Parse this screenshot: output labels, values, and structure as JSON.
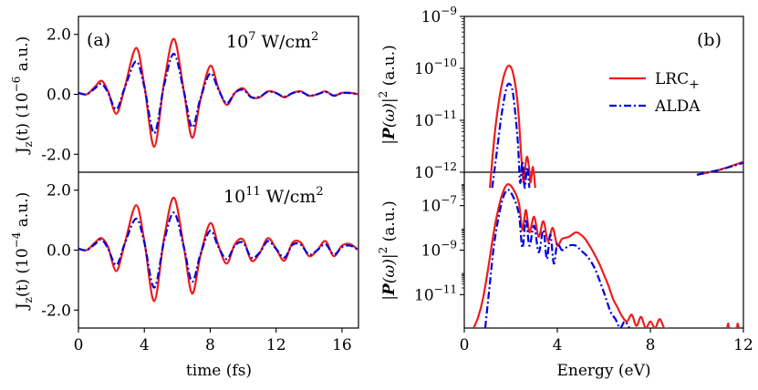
{
  "panels": {
    "a": {
      "letter": "(a)"
    },
    "b": {
      "letter": "(b)"
    }
  },
  "chart_data": [
    {
      "id": "a-top",
      "type": "line",
      "ylabel": "J_z(t) (10^-6 a.u.)",
      "ylabel_parts": {
        "j": "J",
        "sub": "z",
        "mid": "(t) (10",
        "exp": "−6",
        "end": " a.u.)"
      },
      "annotation": {
        "base": "10",
        "exp": "7",
        "unit": " W/cm",
        "unit_exp": "2"
      },
      "xlim": [
        0,
        17
      ],
      "ylim": [
        -2.6,
        2.6
      ],
      "yticks": [
        -2.0,
        0.0,
        2.0
      ],
      "ytick_labels": [
        "-2.0",
        "0.0",
        "2.0"
      ],
      "colors": {
        "LRC": "#ee1c1c",
        "ALDA": "#0000dd"
      },
      "series": [
        {
          "name": "LRC+",
          "x": [
            0,
            0.5,
            1.0,
            1.4,
            1.8,
            2.3,
            2.8,
            3.5,
            4.0,
            4.6,
            5.2,
            5.8,
            6.4,
            6.9,
            7.4,
            8.0,
            8.5,
            9.0,
            9.5,
            10.0,
            10.5,
            11.0,
            11.5,
            12.0,
            12.5,
            13.0,
            13.5,
            14.0,
            14.5,
            15.0,
            15.5,
            16.0,
            16.5,
            17.0
          ],
          "y": [
            0.05,
            0.0,
            0.25,
            0.45,
            0.1,
            -0.65,
            0.2,
            1.55,
            0.3,
            -1.75,
            0.4,
            1.85,
            0.1,
            -1.45,
            -0.2,
            0.95,
            0.2,
            -0.35,
            0.05,
            0.2,
            -0.1,
            -0.1,
            0.1,
            0.05,
            -0.1,
            0.05,
            0.1,
            -0.05,
            0.0,
            0.1,
            -0.05,
            0.05,
            0.05,
            0.0
          ]
        },
        {
          "name": "ALDA",
          "x": [
            0,
            0.5,
            1.0,
            1.4,
            1.8,
            2.3,
            2.8,
            3.5,
            4.0,
            4.6,
            5.2,
            5.8,
            6.4,
            6.9,
            7.4,
            8.0,
            8.5,
            9.0,
            9.5,
            10.0,
            10.5,
            11.0,
            11.5,
            12.0,
            12.5,
            13.0,
            13.5,
            14.0,
            14.5,
            15.0,
            15.5,
            16.0,
            16.5,
            17.0
          ],
          "y": [
            0.05,
            0.0,
            0.2,
            0.35,
            0.05,
            -0.5,
            0.2,
            1.1,
            0.25,
            -1.3,
            0.3,
            1.35,
            0.1,
            -1.1,
            -0.15,
            0.7,
            0.15,
            -0.3,
            0.05,
            0.15,
            -0.1,
            -0.08,
            0.08,
            0.04,
            -0.08,
            0.04,
            0.08,
            -0.04,
            0.0,
            0.08,
            -0.04,
            0.04,
            0.04,
            0.0
          ]
        }
      ]
    },
    {
      "id": "a-bottom",
      "type": "line",
      "ylabel": "J_z(t) (10^-4 a.u.)",
      "ylabel_parts": {
        "j": "J",
        "sub": "z",
        "mid": "(t) (10",
        "exp": "−4",
        "end": " a.u.)"
      },
      "annotation": {
        "base": "10",
        "exp": "11",
        "unit": " W/cm",
        "unit_exp": "2"
      },
      "xlabel": "time (fs)",
      "xlim": [
        0,
        17
      ],
      "ylim": [
        -2.6,
        2.6
      ],
      "xticks": [
        0,
        4,
        8,
        12,
        16
      ],
      "yticks": [
        -2.0,
        0.0,
        2.0
      ],
      "ytick_labels": [
        "-2.0",
        "0.0",
        "2.0"
      ],
      "series": [
        {
          "name": "LRC+",
          "x": [
            0,
            0.5,
            1.0,
            1.4,
            1.8,
            2.3,
            2.8,
            3.5,
            4.0,
            4.6,
            5.2,
            5.8,
            6.4,
            6.9,
            7.4,
            8.0,
            8.5,
            9.0,
            9.5,
            10.0,
            10.5,
            11.0,
            11.5,
            12.0,
            12.5,
            13.0,
            13.5,
            14.0,
            14.5,
            15.0,
            15.5,
            16.0,
            16.5,
            17.0
          ],
          "y": [
            0.05,
            0.0,
            0.25,
            0.4,
            0.1,
            -0.7,
            0.2,
            1.5,
            0.3,
            -1.7,
            0.4,
            1.75,
            0.1,
            -1.45,
            -0.2,
            0.9,
            0.15,
            -0.45,
            0.2,
            0.35,
            -0.35,
            -0.1,
            0.4,
            0.05,
            -0.35,
            0.25,
            0.25,
            -0.2,
            0.0,
            0.3,
            -0.2,
            0.15,
            0.2,
            0.0
          ]
        },
        {
          "name": "ALDA",
          "x": [
            0,
            0.5,
            1.0,
            1.4,
            1.8,
            2.3,
            2.8,
            3.5,
            4.0,
            4.6,
            5.2,
            5.8,
            6.4,
            6.9,
            7.4,
            8.0,
            8.5,
            9.0,
            9.5,
            10.0,
            10.5,
            11.0,
            11.5,
            12.0,
            12.5,
            13.0,
            13.5,
            14.0,
            14.5,
            15.0,
            15.5,
            16.0,
            16.5,
            17.0
          ],
          "y": [
            0.05,
            0.0,
            0.2,
            0.35,
            0.05,
            -0.5,
            0.2,
            1.05,
            0.25,
            -1.25,
            0.3,
            1.25,
            0.1,
            -1.05,
            -0.15,
            0.65,
            0.1,
            -0.3,
            0.15,
            0.25,
            -0.25,
            -0.08,
            0.3,
            0.04,
            -0.25,
            0.18,
            0.18,
            -0.15,
            0.0,
            0.2,
            -0.15,
            0.1,
            0.15,
            0.0
          ]
        }
      ]
    },
    {
      "id": "b-top",
      "type": "line",
      "yscale": "log",
      "ylabel": "|P(ω)|^2 (a.u.)",
      "ylabel_parts": {
        "pre": "|",
        "P": "P",
        "w": "(ω)",
        "post": "|",
        "exp": "2",
        "end": " (a.u.)"
      },
      "xlim": [
        0,
        12
      ],
      "ylim_log10": [
        -12,
        -9
      ],
      "yticks_log10": [
        -12,
        -11,
        -10,
        -9
      ],
      "ytick_exps": [
        "−12",
        "−11",
        "−10",
        "−9"
      ],
      "legend": {
        "location": "upper-right",
        "entries": [
          "LRC",
          "ALDA"
        ],
        "lrc_sub": "+"
      },
      "series": [
        {
          "name": "LRC+",
          "x": [
            1.1,
            1.3,
            1.5,
            1.7,
            1.9,
            2.1,
            2.3,
            2.45,
            2.55,
            2.62,
            2.7,
            2.78,
            2.85,
            2.95,
            3.05
          ],
          "log10y": [
            -12.3,
            -11.3,
            -10.6,
            -10.15,
            -9.95,
            -10.1,
            -10.7,
            -11.7,
            -12.2,
            -11.9,
            -11.7,
            -11.9,
            -12.2,
            -11.9,
            -12.3
          ]
        },
        {
          "name": "LRC+ tail",
          "x": [
            10.0,
            11.0,
            12.0
          ],
          "log10y": [
            -12.05,
            -11.95,
            -11.8
          ]
        },
        {
          "name": "ALDA",
          "x": [
            1.2,
            1.4,
            1.6,
            1.8,
            1.95,
            2.1,
            2.3,
            2.4,
            2.5,
            2.6,
            2.7,
            2.8
          ],
          "log10y": [
            -12.3,
            -11.6,
            -10.9,
            -10.4,
            -10.3,
            -10.5,
            -11.4,
            -12.2,
            -11.8,
            -12.3,
            -11.9,
            -12.3
          ]
        },
        {
          "name": "ALDA tail",
          "x": [
            10.0,
            11.0,
            12.0
          ],
          "log10y": [
            -12.05,
            -11.95,
            -11.82
          ]
        }
      ]
    },
    {
      "id": "b-bottom",
      "type": "line",
      "yscale": "log",
      "ylabel": "|P(ω)|^2 (a.u.)",
      "ylabel_parts": {
        "pre": "|",
        "P": "P",
        "w": "(ω)",
        "post": "|",
        "exp": "2",
        "end": " (a.u.)"
      },
      "xlabel": "Energy (eV)",
      "xlim": [
        0,
        12
      ],
      "ylim_log10": [
        -12.5,
        -5.5
      ],
      "xticks": [
        0,
        4,
        8,
        12
      ],
      "yticks_log10": [
        -11,
        -9,
        -7
      ],
      "ytick_exps": [
        "−11",
        "−9",
        "−7"
      ],
      "series": [
        {
          "name": "LRC+",
          "x": [
            0.4,
            0.6,
            0.8,
            1.0,
            1.3,
            1.6,
            1.85,
            2.1,
            2.35,
            2.5,
            2.65,
            2.8,
            3.0,
            3.2,
            3.4,
            3.6,
            3.8,
            4.0,
            4.2,
            4.5,
            4.8,
            5.0,
            5.2,
            5.5,
            5.8,
            6.0,
            6.2,
            6.4,
            6.6,
            6.8,
            7.0,
            7.2,
            7.4,
            7.6,
            7.8,
            8.0,
            8.2,
            8.4,
            8.6,
            8.8
          ],
          "log10y": [
            -12.5,
            -12.0,
            -11.2,
            -10.0,
            -8.0,
            -6.6,
            -6.05,
            -6.25,
            -6.9,
            -8.1,
            -7.2,
            -8.2,
            -7.5,
            -8.4,
            -7.7,
            -8.6,
            -8.0,
            -8.8,
            -8.5,
            -8.4,
            -8.2,
            -8.3,
            -8.5,
            -9.0,
            -9.6,
            -10.1,
            -10.6,
            -11.2,
            -11.6,
            -12.0,
            -12.2,
            -11.9,
            -12.4,
            -12.0,
            -12.5,
            -12.2,
            -12.5,
            -12.1,
            -12.5,
            -12.5
          ]
        },
        {
          "name": "LRC+ spike",
          "x": [
            11.3,
            11.35,
            11.4,
            11.7,
            11.75,
            11.8
          ],
          "log10y": [
            -12.5,
            -12.3,
            -12.5,
            -12.5,
            -12.3,
            -12.5
          ]
        },
        {
          "name": "ALDA",
          "x": [
            0.9,
            1.1,
            1.3,
            1.6,
            1.85,
            2.1,
            2.35,
            2.5,
            2.65,
            2.8,
            3.0,
            3.2,
            3.4,
            3.55,
            3.7,
            3.85,
            4.0,
            4.2,
            4.5,
            4.8,
            5.0,
            5.3,
            5.6,
            5.9,
            6.1,
            6.3,
            6.5,
            6.7,
            6.9,
            7.1
          ],
          "log10y": [
            -12.5,
            -10.5,
            -8.6,
            -6.9,
            -6.3,
            -6.6,
            -7.4,
            -8.9,
            -7.6,
            -8.8,
            -7.9,
            -9.1,
            -8.1,
            -9.4,
            -8.3,
            -9.6,
            -8.7,
            -9.0,
            -8.8,
            -8.8,
            -9.0,
            -9.3,
            -9.8,
            -10.6,
            -11.2,
            -11.8,
            -12.1,
            -12.5,
            -12.2,
            -12.5
          ]
        }
      ]
    }
  ]
}
